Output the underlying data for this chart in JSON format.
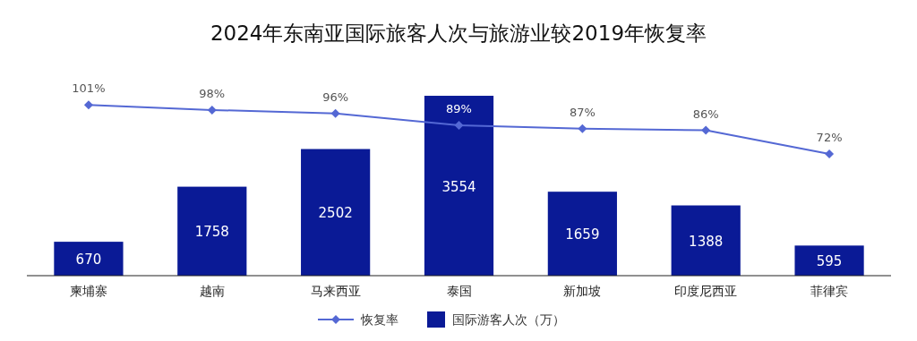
{
  "chart_data": {
    "type": "bar",
    "title": "2024年东南亚国际旅客人次与旅游业较2019年恢复率",
    "categories": [
      "柬埔寨",
      "越南",
      "马来西亚",
      "泰国",
      "新加坡",
      "印度尼西亚",
      "菲律宾"
    ],
    "series": [
      {
        "name": "恢复率",
        "type": "line",
        "axis": "y2",
        "color": "#5468d4",
        "values": [
          101,
          98,
          96,
          89,
          87,
          86,
          72
        ],
        "value_labels": [
          "101%",
          "98%",
          "96%",
          "89%",
          "87%",
          "86%",
          "72%"
        ]
      },
      {
        "name": "国际游客人次（万）",
        "color": "#0a1a96",
        "values": [
          670,
          1758,
          2502,
          3554,
          1659,
          1388,
          595
        ]
      }
    ],
    "data_labels": true,
    "marker": "diamond",
    "line_style": "solid",
    "legend": "bottom",
    "tick_labels": "x"
  }
}
